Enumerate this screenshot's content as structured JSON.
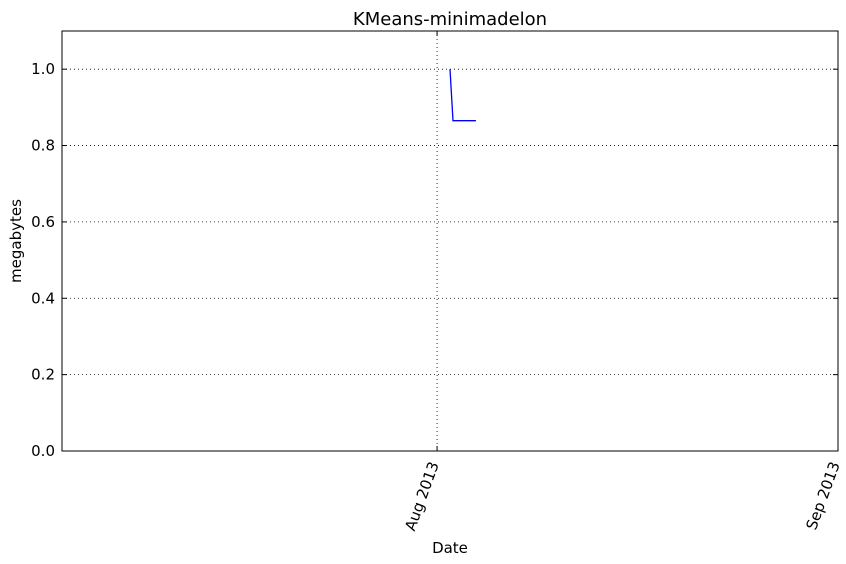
{
  "chart_data": {
    "type": "line",
    "title": "KMeans-minimadelon",
    "xlabel": "Date",
    "ylabel": "megabytes",
    "x_axis_type": "date",
    "xlim": [
      "2013-07-03",
      "2013-09-01"
    ],
    "ylim": [
      0,
      1.1
    ],
    "grid": true,
    "grid_style": "dotted",
    "x_ticks": [
      {
        "date": "2013-08-01",
        "label": "Aug 2013"
      },
      {
        "date": "2013-09-01",
        "label": "Sep 2013"
      }
    ],
    "y_ticks": [
      {
        "value": 0.0,
        "label": "0.0"
      },
      {
        "value": 0.2,
        "label": "0.2"
      },
      {
        "value": 0.4,
        "label": "0.4"
      },
      {
        "value": 0.6,
        "label": "0.6"
      },
      {
        "value": 0.8,
        "label": "0.8"
      },
      {
        "value": 1.0,
        "label": "1.0"
      }
    ],
    "series": [
      {
        "color": "#0000ff",
        "points": [
          {
            "x": "2013-08-02",
            "y": 1.0
          },
          {
            "x": "2013-08-02",
            "y": 0.865
          },
          {
            "x": "2013-08-04",
            "y": 0.865
          }
        ]
      }
    ]
  }
}
